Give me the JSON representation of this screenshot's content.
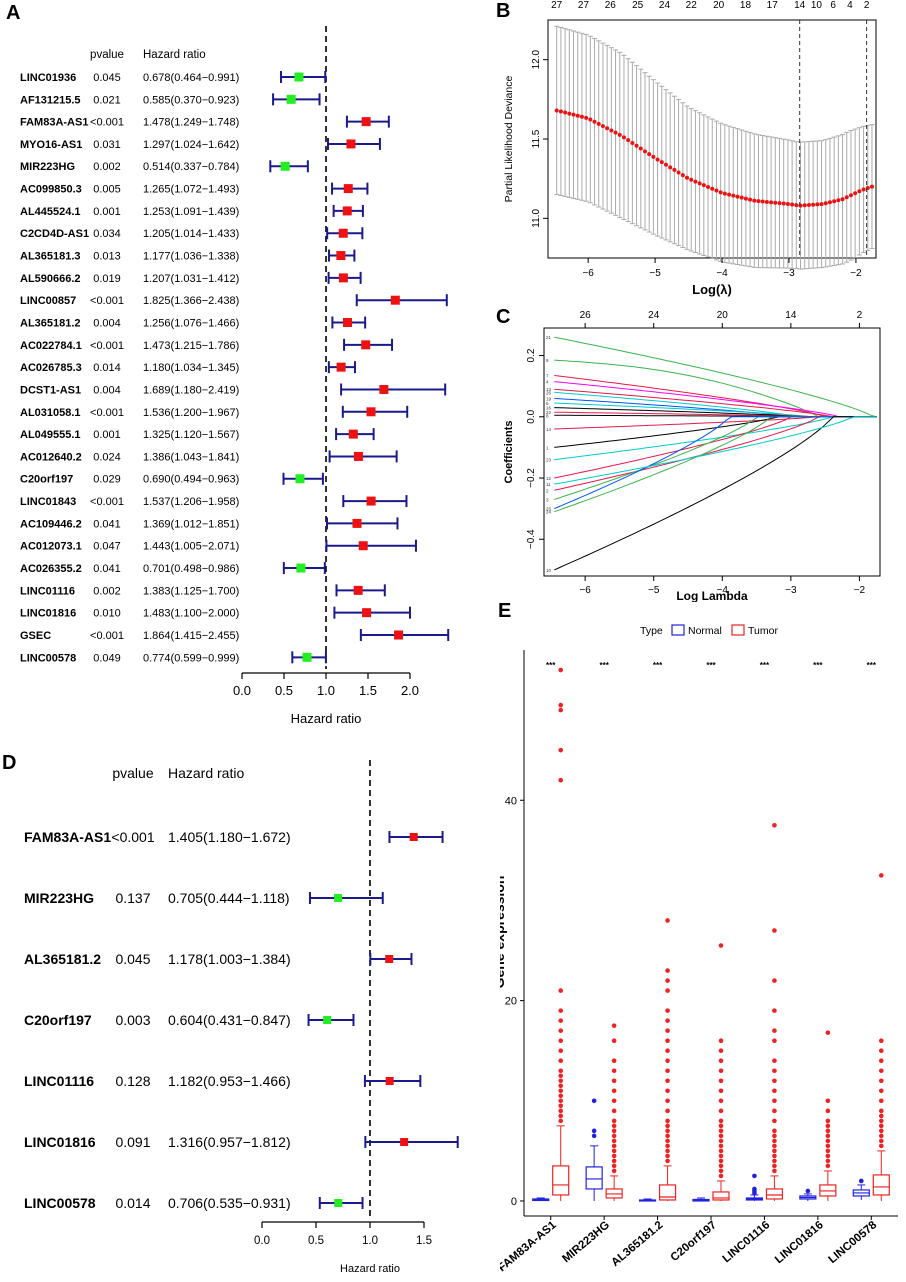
{
  "panels": {
    "a": "A",
    "b": "B",
    "c": "C",
    "d": "D",
    "e": "E"
  },
  "colors": {
    "protective": "#22ee22",
    "risk": "#ee1111",
    "ci": "#1a1a8c",
    "normal": "#2222dd",
    "tumor": "#ee2222",
    "lasso_point": "#ee1111"
  },
  "chart_data": [
    {
      "id": "A",
      "type": "forest",
      "col_pvalue": "pvalue",
      "col_hr": "Hazard ratio",
      "xlabel": "Hazard ratio",
      "xlim": [
        0,
        2
      ],
      "ticks": [
        "0.0",
        "0.5",
        "1.0",
        "1.5",
        "2.0"
      ],
      "tick_values": [
        0,
        0.5,
        1,
        1.5,
        2
      ],
      "reference": 1,
      "rows": [
        {
          "gene": "LINC01936",
          "p": "0.045",
          "hr_text": "0.678(0.464−0.991)",
          "hr": 0.678,
          "lo": 0.464,
          "hi": 0.991
        },
        {
          "gene": "AF131215.5",
          "p": "0.021",
          "hr_text": "0.585(0.370−0.923)",
          "hr": 0.585,
          "lo": 0.37,
          "hi": 0.923
        },
        {
          "gene": "FAM83A-AS1",
          "p": "<0.001",
          "hr_text": "1.478(1.249−1.748)",
          "hr": 1.478,
          "lo": 1.249,
          "hi": 1.748
        },
        {
          "gene": "MYO16-AS1",
          "p": "0.031",
          "hr_text": "1.297(1.024−1.642)",
          "hr": 1.297,
          "lo": 1.024,
          "hi": 1.642
        },
        {
          "gene": "MIR223HG",
          "p": "0.002",
          "hr_text": "0.514(0.337−0.784)",
          "hr": 0.514,
          "lo": 0.337,
          "hi": 0.784
        },
        {
          "gene": "AC099850.3",
          "p": "0.005",
          "hr_text": "1.265(1.072−1.493)",
          "hr": 1.265,
          "lo": 1.072,
          "hi": 1.493
        },
        {
          "gene": "AL445524.1",
          "p": "0.001",
          "hr_text": "1.253(1.091−1.439)",
          "hr": 1.253,
          "lo": 1.091,
          "hi": 1.439
        },
        {
          "gene": "C2CD4D-AS1",
          "p": "0.034",
          "hr_text": "1.205(1.014−1.433)",
          "hr": 1.205,
          "lo": 1.014,
          "hi": 1.433
        },
        {
          "gene": "AL365181.3",
          "p": "0.013",
          "hr_text": "1.177(1.036−1.338)",
          "hr": 1.177,
          "lo": 1.036,
          "hi": 1.338
        },
        {
          "gene": "AL590666.2",
          "p": "0.019",
          "hr_text": "1.207(1.031−1.412)",
          "hr": 1.207,
          "lo": 1.031,
          "hi": 1.412
        },
        {
          "gene": "LINC00857",
          "p": "<0.001",
          "hr_text": "1.825(1.366−2.438)",
          "hr": 1.825,
          "lo": 1.366,
          "hi": 2.438
        },
        {
          "gene": "AL365181.2",
          "p": "0.004",
          "hr_text": "1.256(1.076−1.466)",
          "hr": 1.256,
          "lo": 1.076,
          "hi": 1.466
        },
        {
          "gene": "AC022784.1",
          "p": "<0.001",
          "hr_text": "1.473(1.215−1.786)",
          "hr": 1.473,
          "lo": 1.215,
          "hi": 1.786
        },
        {
          "gene": "AC026785.3",
          "p": "0.014",
          "hr_text": "1.180(1.034−1.345)",
          "hr": 1.18,
          "lo": 1.034,
          "hi": 1.345
        },
        {
          "gene": "DCST1-AS1",
          "p": "0.004",
          "hr_text": "1.689(1.180−2.419)",
          "hr": 1.689,
          "lo": 1.18,
          "hi": 2.419
        },
        {
          "gene": "AL031058.1",
          "p": "<0.001",
          "hr_text": "1.536(1.200−1.967)",
          "hr": 1.536,
          "lo": 1.2,
          "hi": 1.967
        },
        {
          "gene": "AL049555.1",
          "p": "0.001",
          "hr_text": "1.325(1.120−1.567)",
          "hr": 1.325,
          "lo": 1.12,
          "hi": 1.567
        },
        {
          "gene": "AC012640.2",
          "p": "0.024",
          "hr_text": "1.386(1.043−1.841)",
          "hr": 1.386,
          "lo": 1.043,
          "hi": 1.841
        },
        {
          "gene": "C20orf197",
          "p": "0.029",
          "hr_text": "0.690(0.494−0.963)",
          "hr": 0.69,
          "lo": 0.494,
          "hi": 0.963
        },
        {
          "gene": "LINC01843",
          "p": "<0.001",
          "hr_text": "1.537(1.206−1.958)",
          "hr": 1.537,
          "lo": 1.206,
          "hi": 1.958
        },
        {
          "gene": "AC109446.2",
          "p": "0.041",
          "hr_text": "1.369(1.012−1.851)",
          "hr": 1.369,
          "lo": 1.012,
          "hi": 1.851
        },
        {
          "gene": "AC012073.1",
          "p": "0.047",
          "hr_text": "1.443(1.005−2.071)",
          "hr": 1.443,
          "lo": 1.005,
          "hi": 2.071
        },
        {
          "gene": "AC026355.2",
          "p": "0.041",
          "hr_text": "0.701(0.498−0.986)",
          "hr": 0.701,
          "lo": 0.498,
          "hi": 0.986
        },
        {
          "gene": "LINC01116",
          "p": "0.002",
          "hr_text": "1.383(1.125−1.700)",
          "hr": 1.383,
          "lo": 1.125,
          "hi": 1.7
        },
        {
          "gene": "LINC01816",
          "p": "0.010",
          "hr_text": "1.483(1.100−2.000)",
          "hr": 1.483,
          "lo": 1.1,
          "hi": 2.0
        },
        {
          "gene": "GSEC",
          "p": "<0.001",
          "hr_text": "1.864(1.415−2.455)",
          "hr": 1.864,
          "lo": 1.415,
          "hi": 2.455
        },
        {
          "gene": "LINC00578",
          "p": "0.049",
          "hr_text": "0.774(0.599−0.999)",
          "hr": 0.774,
          "lo": 0.599,
          "hi": 0.999
        }
      ]
    },
    {
      "id": "B",
      "type": "line",
      "title": "",
      "xlabel": "Log(λ)",
      "ylabel": "Partial Likelihood Deviance",
      "xlim": [
        -6.6,
        -1.7
      ],
      "ylim": [
        10.75,
        12.25
      ],
      "xticks": [
        -6,
        -5,
        -4,
        -3,
        -2
      ],
      "yticks": [
        11.0,
        11.5,
        12.0
      ],
      "top_labels": [
        "27",
        "27",
        "26",
        "25",
        "24",
        "22",
        "20",
        "18",
        "17",
        "14",
        "10",
        "6",
        "4",
        "2"
      ],
      "top_label_x": [
        -6.47,
        -6.07,
        -5.67,
        -5.26,
        -4.86,
        -4.46,
        -4.05,
        -3.65,
        -3.25,
        -2.84,
        -2.59,
        -2.34,
        -2.09,
        -1.84
      ],
      "vlines": [
        -2.84,
        -1.84
      ],
      "lambda_x_start": -6.47,
      "lambda_x_end": -1.76,
      "n_points": 76,
      "mean_curve": [
        [
          -6.47,
          11.68
        ],
        [
          -6.0,
          11.63
        ],
        [
          -5.5,
          11.52
        ],
        [
          -5.0,
          11.38
        ],
        [
          -4.5,
          11.25
        ],
        [
          -4.0,
          11.16
        ],
        [
          -3.5,
          11.11
        ],
        [
          -3.0,
          11.09
        ],
        [
          -2.84,
          11.08
        ],
        [
          -2.5,
          11.09
        ],
        [
          -2.2,
          11.12
        ],
        [
          -1.9,
          11.18
        ],
        [
          -1.76,
          11.2
        ]
      ],
      "error_halfwidth": [
        [
          -6.47,
          0.53
        ],
        [
          -5.5,
          0.52
        ],
        [
          -4.5,
          0.45
        ],
        [
          -3.5,
          0.42
        ],
        [
          -2.9,
          0.4
        ],
        [
          -2.5,
          0.4
        ],
        [
          -2.1,
          0.41
        ],
        [
          -1.76,
          0.39
        ]
      ]
    },
    {
      "id": "C",
      "type": "line",
      "xlabel": "Log Lambda",
      "ylabel": "Coefficients",
      "xlim": [
        -6.6,
        -1.7
      ],
      "ylim": [
        -0.52,
        0.29
      ],
      "xticks": [
        -6,
        -5,
        -4,
        -3,
        -2
      ],
      "yticks": [
        -0.4,
        -0.2,
        0.0,
        0.2
      ],
      "ytick_labels": [
        "−0.4",
        "−0.2",
        "0.0",
        "0.2"
      ],
      "top_labels": [
        "26",
        "24",
        "20",
        "14",
        "2"
      ],
      "top_label_x": [
        -6.0,
        -5.0,
        -4.0,
        -3.0,
        -2.0
      ],
      "series": [
        {
          "name": "21",
          "c": 0.26,
          "z": -1.8,
          "color": "#3cb44b"
        },
        {
          "name": "9",
          "c": 0.185,
          "z": -2.6,
          "color": "#3cb44b",
          "bump": 0.03
        },
        {
          "name": "7",
          "c": 0.135,
          "z": -2.5,
          "color": "#e6194b"
        },
        {
          "name": "4",
          "c": 0.115,
          "z": -2.3,
          "color": "#ff00ff"
        },
        {
          "name": "13",
          "c": 0.09,
          "z": -2.4,
          "color": "#e6194b"
        },
        {
          "name": "26",
          "c": 0.08,
          "z": -2.9,
          "color": "#00cccc"
        },
        {
          "name": "19",
          "c": 0.06,
          "z": -3.0,
          "color": "#0055ff"
        },
        {
          "name": "5",
          "c": 0.045,
          "z": -2.7,
          "color": "#00cccc"
        },
        {
          "name": "16",
          "c": 0.03,
          "z": -2.8,
          "color": "#000000"
        },
        {
          "name": "22",
          "c": 0.015,
          "z": -2.6,
          "color": "#e6194b"
        },
        {
          "name": "8",
          "c": 0.005,
          "z": -2.2,
          "color": "#000000"
        },
        {
          "name": "14",
          "c": -0.04,
          "z": -2.6,
          "color": "#e6194b"
        },
        {
          "name": "1",
          "c": -0.1,
          "z": -3.2,
          "color": "#000000"
        },
        {
          "name": "23",
          "c": -0.14,
          "z": -2.4,
          "color": "#00cccc"
        },
        {
          "name": "12",
          "c": -0.2,
          "z": -3.0,
          "color": "#e6194b"
        },
        {
          "name": "2",
          "c": -0.24,
          "z": -2.6,
          "color": "#e6194b"
        },
        {
          "name": "3",
          "c": -0.27,
          "z": -3.5,
          "color": "#3cb44b"
        },
        {
          "name": "24",
          "c": -0.31,
          "z": -3.3,
          "color": "#3cb44b"
        },
        {
          "name": "25",
          "c": -0.3,
          "z": -3.9,
          "color": "#0055ff"
        },
        {
          "name": "10",
          "c": -0.5,
          "z": -2.4,
          "color": "#000000"
        },
        {
          "name": "11",
          "c": -0.22,
          "z": -2.1,
          "color": "#00cccc"
        }
      ]
    },
    {
      "id": "D",
      "type": "forest",
      "col_pvalue": "pvalue",
      "col_hr": "Hazard ratio",
      "xlabel": "Hazard ratio",
      "xlim": [
        0,
        1.5
      ],
      "ticks": [
        "0.0",
        "0.5",
        "1.0",
        "1.5"
      ],
      "tick_values": [
        0,
        0.5,
        1,
        1.5
      ],
      "reference": 1,
      "rows": [
        {
          "gene": "FAM83A-AS1",
          "p": "<0.001",
          "hr_text": "1.405(1.180−1.672)",
          "hr": 1.405,
          "lo": 1.18,
          "hi": 1.672
        },
        {
          "gene": "MIR223HG",
          "p": "0.137",
          "hr_text": "0.705(0.444−1.118)",
          "hr": 0.705,
          "lo": 0.444,
          "hi": 1.118
        },
        {
          "gene": "AL365181.2",
          "p": "0.045",
          "hr_text": "1.178(1.003−1.384)",
          "hr": 1.178,
          "lo": 1.003,
          "hi": 1.384
        },
        {
          "gene": "C20orf197",
          "p": "0.003",
          "hr_text": "0.604(0.431−0.847)",
          "hr": 0.604,
          "lo": 0.431,
          "hi": 0.847
        },
        {
          "gene": "LINC01116",
          "p": "0.128",
          "hr_text": "1.182(0.953−1.466)",
          "hr": 1.182,
          "lo": 0.953,
          "hi": 1.466
        },
        {
          "gene": "LINC01816",
          "p": "0.091",
          "hr_text": "1.316(0.957−1.812)",
          "hr": 1.316,
          "lo": 0.957,
          "hi": 1.812
        },
        {
          "gene": "LINC00578",
          "p": "0.014",
          "hr_text": "0.706(0.535−0.931)",
          "hr": 0.706,
          "lo": 0.535,
          "hi": 0.931
        }
      ]
    },
    {
      "id": "E",
      "type": "box",
      "ylabel": "Gene expression",
      "ylim": [
        -1.5,
        55
      ],
      "yticks": [
        0,
        20,
        40
      ],
      "legend_title": "Type",
      "legend_labels": [
        "Normal",
        "Tumor"
      ],
      "significance": "***",
      "groups": [
        {
          "gene": "FAM83A-AS1",
          "normal": {
            "min": 0,
            "q1": 0.05,
            "med": 0.1,
            "q3": 0.2,
            "max": 0.3,
            "outliers": []
          },
          "tumor": {
            "min": 0,
            "q1": 0.6,
            "med": 1.6,
            "q3": 3.5,
            "max": 7.5,
            "outliers": [
              8,
              8.5,
              9,
              9.5,
              10,
              10.5,
              11,
              11.5,
              12,
              12.5,
              13,
              14,
              15,
              16,
              17,
              18,
              19,
              21,
              42,
              45,
              49,
              49.5,
              53
            ]
          }
        },
        {
          "gene": "MIR223HG",
          "normal": {
            "min": 0,
            "q1": 1.2,
            "med": 2.2,
            "q3": 3.4,
            "max": 5.5,
            "outliers": [
              6.5,
              7,
              10
            ]
          },
          "tumor": {
            "min": 0,
            "q1": 0.3,
            "med": 0.7,
            "q3": 1.2,
            "max": 2.5,
            "outliers": [
              3,
              3.5,
              4,
              4.5,
              5,
              5.5,
              6,
              6.5,
              7,
              7.5,
              8,
              9,
              10,
              11,
              12,
              13,
              14,
              16,
              17.5
            ]
          }
        },
        {
          "gene": "AL365181.2",
          "normal": {
            "min": 0,
            "q1": 0,
            "med": 0.05,
            "q3": 0.1,
            "max": 0.2,
            "outliers": []
          },
          "tumor": {
            "min": 0,
            "q1": 0.1,
            "med": 0.4,
            "q3": 1.6,
            "max": 3.5,
            "outliers": [
              4,
              4.5,
              5,
              5.5,
              6,
              6.5,
              7,
              7.5,
              8,
              9,
              10,
              11,
              12,
              13,
              14,
              15,
              16,
              17,
              18,
              19,
              21,
              22,
              23,
              28
            ]
          }
        },
        {
          "gene": "C20orf197",
          "normal": {
            "min": 0,
            "q1": 0,
            "med": 0.05,
            "q3": 0.15,
            "max": 0.3,
            "outliers": []
          },
          "tumor": {
            "min": 0,
            "q1": 0.1,
            "med": 0.3,
            "q3": 0.9,
            "max": 2,
            "outliers": [
              2.5,
              3,
              3.5,
              4,
              4.5,
              5,
              5.5,
              6,
              6.5,
              7,
              7.5,
              8,
              9,
              10,
              11,
              12,
              13,
              14,
              15,
              16,
              25.5
            ]
          }
        },
        {
          "gene": "LINC01116",
          "normal": {
            "min": 0,
            "q1": 0.1,
            "med": 0.2,
            "q3": 0.3,
            "max": 0.6,
            "outliers": [
              0.8,
              1,
              1.2,
              2.5
            ]
          },
          "tumor": {
            "min": 0,
            "q1": 0.2,
            "med": 0.6,
            "q3": 1.2,
            "max": 2.5,
            "outliers": [
              3,
              3.5,
              4,
              4.5,
              5,
              5.5,
              6,
              6.5,
              7,
              8,
              9,
              10,
              11,
              12,
              13,
              14,
              16,
              17,
              19,
              22,
              27,
              37.5
            ]
          }
        },
        {
          "gene": "LINC01816",
          "normal": {
            "min": 0,
            "q1": 0.2,
            "med": 0.35,
            "q3": 0.5,
            "max": 0.7,
            "outliers": [
              1
            ]
          },
          "tumor": {
            "min": 0,
            "q1": 0.5,
            "med": 1,
            "q3": 1.6,
            "max": 3,
            "outliers": [
              3.5,
              4,
              4.5,
              5,
              5.5,
              6,
              6.5,
              7,
              7.5,
              8,
              9,
              10,
              16.8
            ]
          }
        },
        {
          "gene": "LINC00578",
          "normal": {
            "min": 0.1,
            "q1": 0.5,
            "med": 0.8,
            "q3": 1.1,
            "max": 1.6,
            "outliers": [
              2
            ]
          },
          "tumor": {
            "min": 0,
            "q1": 0.6,
            "med": 1.4,
            "q3": 2.6,
            "max": 5,
            "outliers": [
              5.5,
              6,
              6.5,
              7,
              7.5,
              8,
              8.5,
              9,
              10,
              11,
              12,
              13,
              14,
              15,
              16,
              32.5
            ]
          }
        }
      ]
    }
  ]
}
